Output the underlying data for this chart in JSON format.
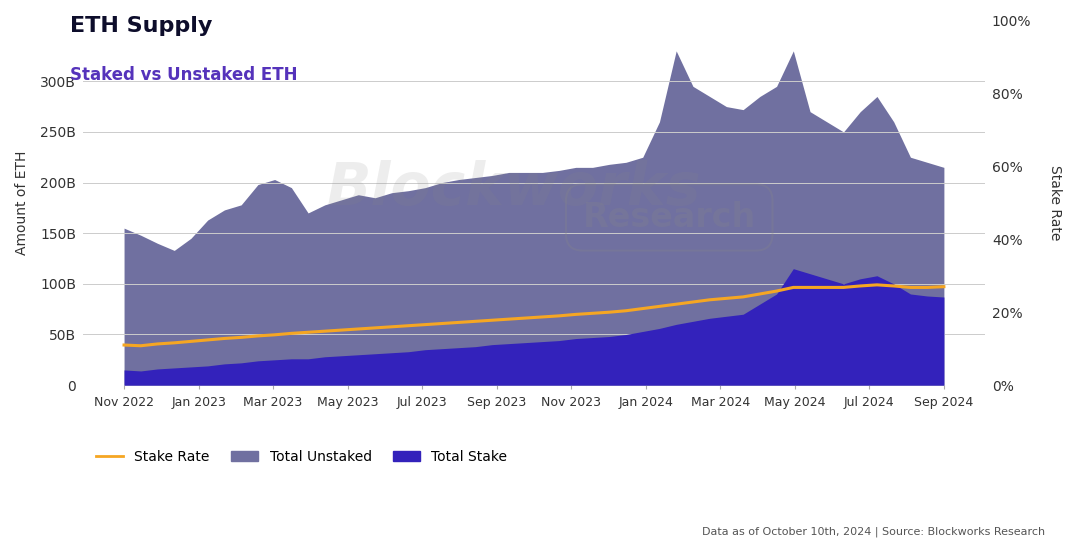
{
  "title": "ETH Supply",
  "subtitle": "Staked vs Unstaked ETH",
  "title_color": "#0d0d2b",
  "subtitle_color": "#5533bb",
  "ylabel_left": "Amount of ETH",
  "ylabel_right": "Stake Rate",
  "background_color": "#ffffff",
  "plot_bg_color": "#ffffff",
  "watermark": "Blockworks",
  "watermark2": "Research",
  "footer": "Data as of October 10th, 2024 | Source: Blockworks Research",
  "x_labels": [
    "Nov 2022",
    "Jan 2023",
    "Mar 2023",
    "May 2023",
    "Jul 2023",
    "Sep 2023",
    "Nov 2023",
    "Jan 2024",
    "Mar 2024",
    "May 2024",
    "Jul 2024",
    "Sep 2024"
  ],
  "ylim_left": [
    0,
    360000000000
  ],
  "ylim_right": [
    0,
    1.0
  ],
  "yticks_left": [
    0,
    50000000000,
    100000000000,
    150000000000,
    200000000000,
    250000000000,
    300000000000
  ],
  "ytick_labels_left": [
    "0",
    "50B",
    "100B",
    "150B",
    "200B",
    "250B",
    "300B"
  ],
  "yticks_right": [
    0,
    0.2,
    0.4,
    0.6,
    0.8,
    1.0
  ],
  "ytick_labels_right": [
    "0%",
    "20%",
    "40%",
    "60%",
    "80%",
    "100%"
  ],
  "color_unstaked": "#7070a0",
  "color_staked": "#3322bb",
  "color_stake_rate": "#f5a623",
  "legend_labels": [
    "Stake Rate",
    "Total Unstaked",
    "Total Stake"
  ],
  "n_points": 50,
  "total_combined": [
    155000000000,
    148000000000,
    140000000000,
    133000000000,
    145000000000,
    163000000000,
    173000000000,
    178000000000,
    198000000000,
    203000000000,
    195000000000,
    170000000000,
    178000000000,
    183000000000,
    188000000000,
    185000000000,
    190000000000,
    192000000000,
    195000000000,
    200000000000,
    203000000000,
    205000000000,
    207000000000,
    210000000000,
    210000000000,
    210000000000,
    212000000000,
    215000000000,
    215000000000,
    218000000000,
    220000000000,
    225000000000,
    260000000000,
    330000000000,
    295000000000,
    285000000000,
    275000000000,
    272000000000,
    285000000000,
    295000000000,
    330000000000,
    270000000000,
    260000000000,
    250000000000,
    270000000000,
    285000000000,
    260000000000,
    225000000000,
    220000000000,
    215000000000
  ],
  "total_staked": [
    15000000000,
    14000000000,
    16000000000,
    17000000000,
    18000000000,
    19000000000,
    21000000000,
    22000000000,
    24000000000,
    25000000000,
    26000000000,
    26000000000,
    28000000000,
    29000000000,
    30000000000,
    31000000000,
    32000000000,
    33000000000,
    35000000000,
    36000000000,
    37000000000,
    38000000000,
    40000000000,
    41000000000,
    42000000000,
    43000000000,
    44000000000,
    46000000000,
    47000000000,
    48000000000,
    50000000000,
    53000000000,
    56000000000,
    60000000000,
    63000000000,
    66000000000,
    68000000000,
    70000000000,
    80000000000,
    90000000000,
    115000000000,
    110000000000,
    105000000000,
    100000000000,
    105000000000,
    108000000000,
    100000000000,
    90000000000,
    88000000000,
    87000000000
  ],
  "stake_rate": [
    0.11,
    0.108,
    0.113,
    0.116,
    0.12,
    0.124,
    0.128,
    0.131,
    0.135,
    0.138,
    0.142,
    0.145,
    0.148,
    0.151,
    0.154,
    0.157,
    0.16,
    0.163,
    0.166,
    0.169,
    0.172,
    0.175,
    0.178,
    0.181,
    0.184,
    0.187,
    0.19,
    0.194,
    0.197,
    0.2,
    0.204,
    0.21,
    0.216,
    0.222,
    0.228,
    0.234,
    0.238,
    0.242,
    0.25,
    0.258,
    0.268,
    0.268,
    0.268,
    0.268,
    0.272,
    0.275,
    0.272,
    0.268,
    0.268,
    0.27
  ]
}
